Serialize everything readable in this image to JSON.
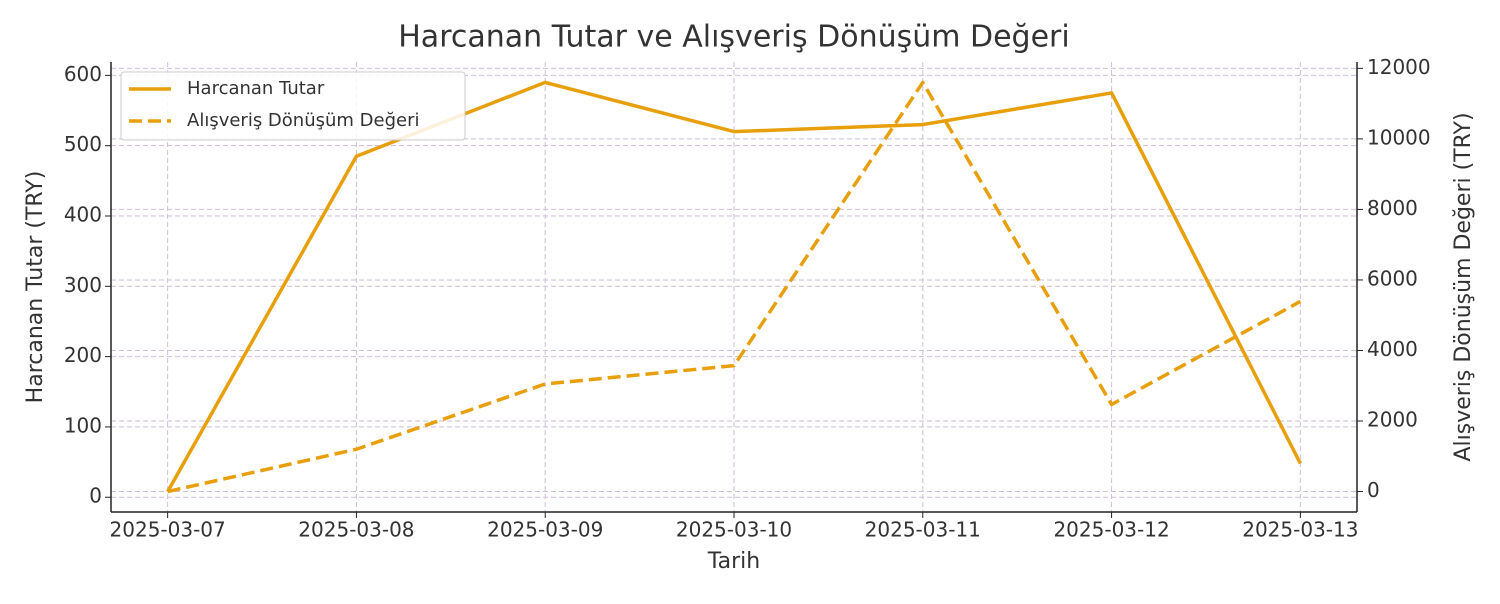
{
  "chart_data": {
    "type": "line",
    "title": "Harcanan Tutar ve Alışveriş Dönüşüm Değeri",
    "x_label": "Tarih",
    "y_label": "Harcanan Tutar (TRY)",
    "y2_label": "Alışveriş Dönüşüm Değeri (TRY)",
    "categories": [
      "2025-03-07",
      "2025-03-08",
      "2025-03-09",
      "2025-03-10",
      "2025-03-11",
      "2025-03-12",
      "2025-03-13"
    ],
    "series": [
      {
        "name": "Harcanan Tutar",
        "color": "#e89f0c",
        "dash": false,
        "values": [
          8,
          485,
          590,
          520,
          530,
          575,
          48
        ]
      },
      {
        "name": "Alışveriş Dönüşüm Değeri",
        "color": "#e89f0c",
        "dash": true,
        "axis": "y2",
        "values": [
          0,
          1200,
          3050,
          3570,
          11600,
          2470,
          5390
        ]
      }
    ],
    "ylim": [
      -21,
      619
    ],
    "yticks": [
      0,
      100,
      200,
      300,
      400,
      500,
      600
    ],
    "y2lim": [
      -580,
      12180
    ],
    "y2ticks": [
      0,
      2000,
      4000,
      6000,
      8000,
      10000,
      12000
    ],
    "grid": true,
    "legend": "upper-left"
  }
}
